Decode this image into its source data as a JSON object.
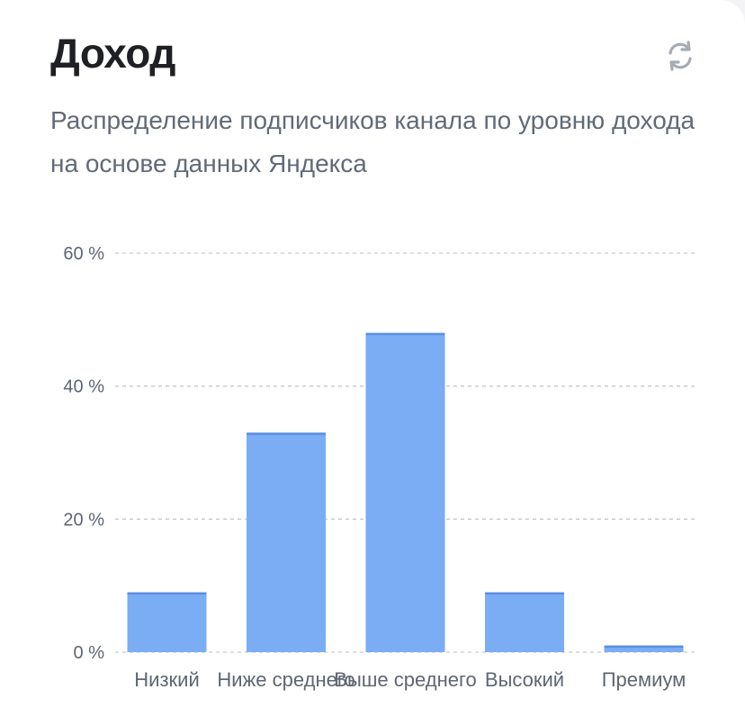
{
  "card": {
    "title": "Доход",
    "subtitle": "Распределение подписчиков канала по уровню дохода на основе данных Яндекса",
    "refresh_icon": "refresh-icon"
  },
  "chart_data": {
    "type": "bar",
    "title": "Доход",
    "subtitle": "Распределение подписчиков канала по уровню дохода на основе данных Яндекса",
    "xlabel": "",
    "ylabel": "",
    "categories": [
      "Низкий",
      "Ниже среднего",
      "Выше среднего",
      "Высокий",
      "Премиум"
    ],
    "values": [
      9,
      33,
      48,
      9,
      1
    ],
    "ylim": [
      0,
      60
    ],
    "yticks": [
      0,
      20,
      40,
      60
    ],
    "ytick_labels": [
      "0 %",
      "20 %",
      "40 %",
      "60 %"
    ],
    "grid": true,
    "colors": {
      "bar": "#7aadf4",
      "bar_top": "#5b8fe0",
      "grid": "#c6c9cf"
    }
  }
}
